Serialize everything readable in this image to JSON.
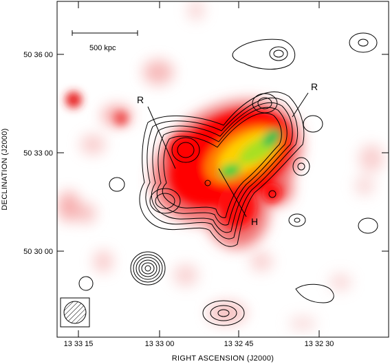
{
  "chart_data": {
    "type": "heatmap",
    "title": "",
    "xlabel": "RIGHT ASCENSION  (J2000)",
    "ylabel": "DECLINATION  (J2000)",
    "x_tick_labels": [
      "13 33 15",
      "13 33 00",
      "13 32 45",
      "13 32 30"
    ],
    "y_tick_labels": [
      "50 36 00",
      "50 33 00",
      "50 30 00"
    ],
    "scale_bar_label": "500 kpc",
    "annotations": [
      "R",
      "R",
      "H"
    ],
    "background_image": "X-ray emission, red-yellow-green colour scale",
    "overlay": "radio contours (black)",
    "beam_marker": "hatched circle in box, lower-left"
  }
}
